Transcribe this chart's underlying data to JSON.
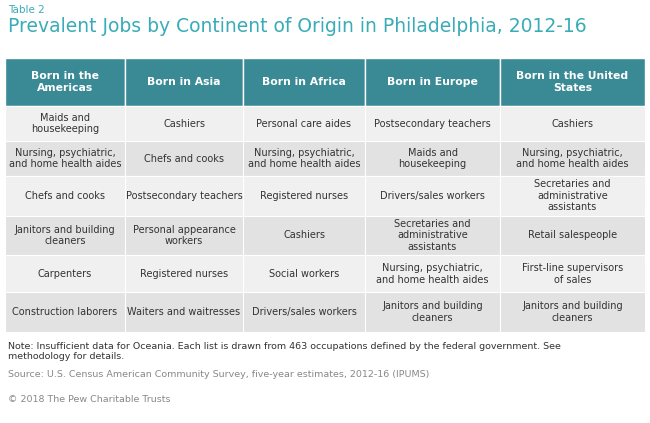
{
  "table2_label": "Table 2",
  "title": "Prevalent Jobs by Continent of Origin in Philadelphia, 2012-16",
  "headers": [
    "Born in the\nAmericas",
    "Born in Asia",
    "Born in Africa",
    "Born in Europe",
    "Born in the United\nStates"
  ],
  "rows": [
    [
      "Maids and\nhousekeeping",
      "Cashiers",
      "Personal care aides",
      "Postsecondary teachers",
      "Cashiers"
    ],
    [
      "Nursing, psychiatric,\nand home health aides",
      "Chefs and cooks",
      "Nursing, psychiatric,\nand home health aides",
      "Maids and\nhousekeeping",
      "Nursing, psychiatric,\nand home health aides"
    ],
    [
      "Chefs and cooks",
      "Postsecondary teachers",
      "Registered nurses",
      "Drivers/sales workers",
      "Secretaries and\nadministrative\nassistants"
    ],
    [
      "Janitors and building\ncleaners",
      "Personal appearance\nworkers",
      "Cashiers",
      "Secretaries and\nadministrative\nassistants",
      "Retail salespeople"
    ],
    [
      "Carpenters",
      "Registered nurses",
      "Social workers",
      "Nursing, psychiatric,\nand home health aides",
      "First-line supervisors\nof sales"
    ],
    [
      "Construction laborers",
      "Waiters and waitresses",
      "Drivers/sales workers",
      "Janitors and building\ncleaners",
      "Janitors and building\ncleaners"
    ]
  ],
  "header_bg_color": "#3a8a96",
  "header_text_color": "#ffffff",
  "odd_row_bg": "#e2e2e2",
  "even_row_bg": "#f0f0f0",
  "cell_text_color": "#333333",
  "title_color": "#3aacb8",
  "table2_color": "#3aacb8",
  "note_text": "Note: Insufficient data for Oceania. Each list is drawn from 463 occupations defined by the federal government. See\nmethodology for details.",
  "source_text": "Source: U.S. Census American Community Survey, five-year estimates, 2012-16 (IPUMS)",
  "copyright_text": "© 2018 The Pew Charitable Trusts",
  "background_color": "#ffffff"
}
